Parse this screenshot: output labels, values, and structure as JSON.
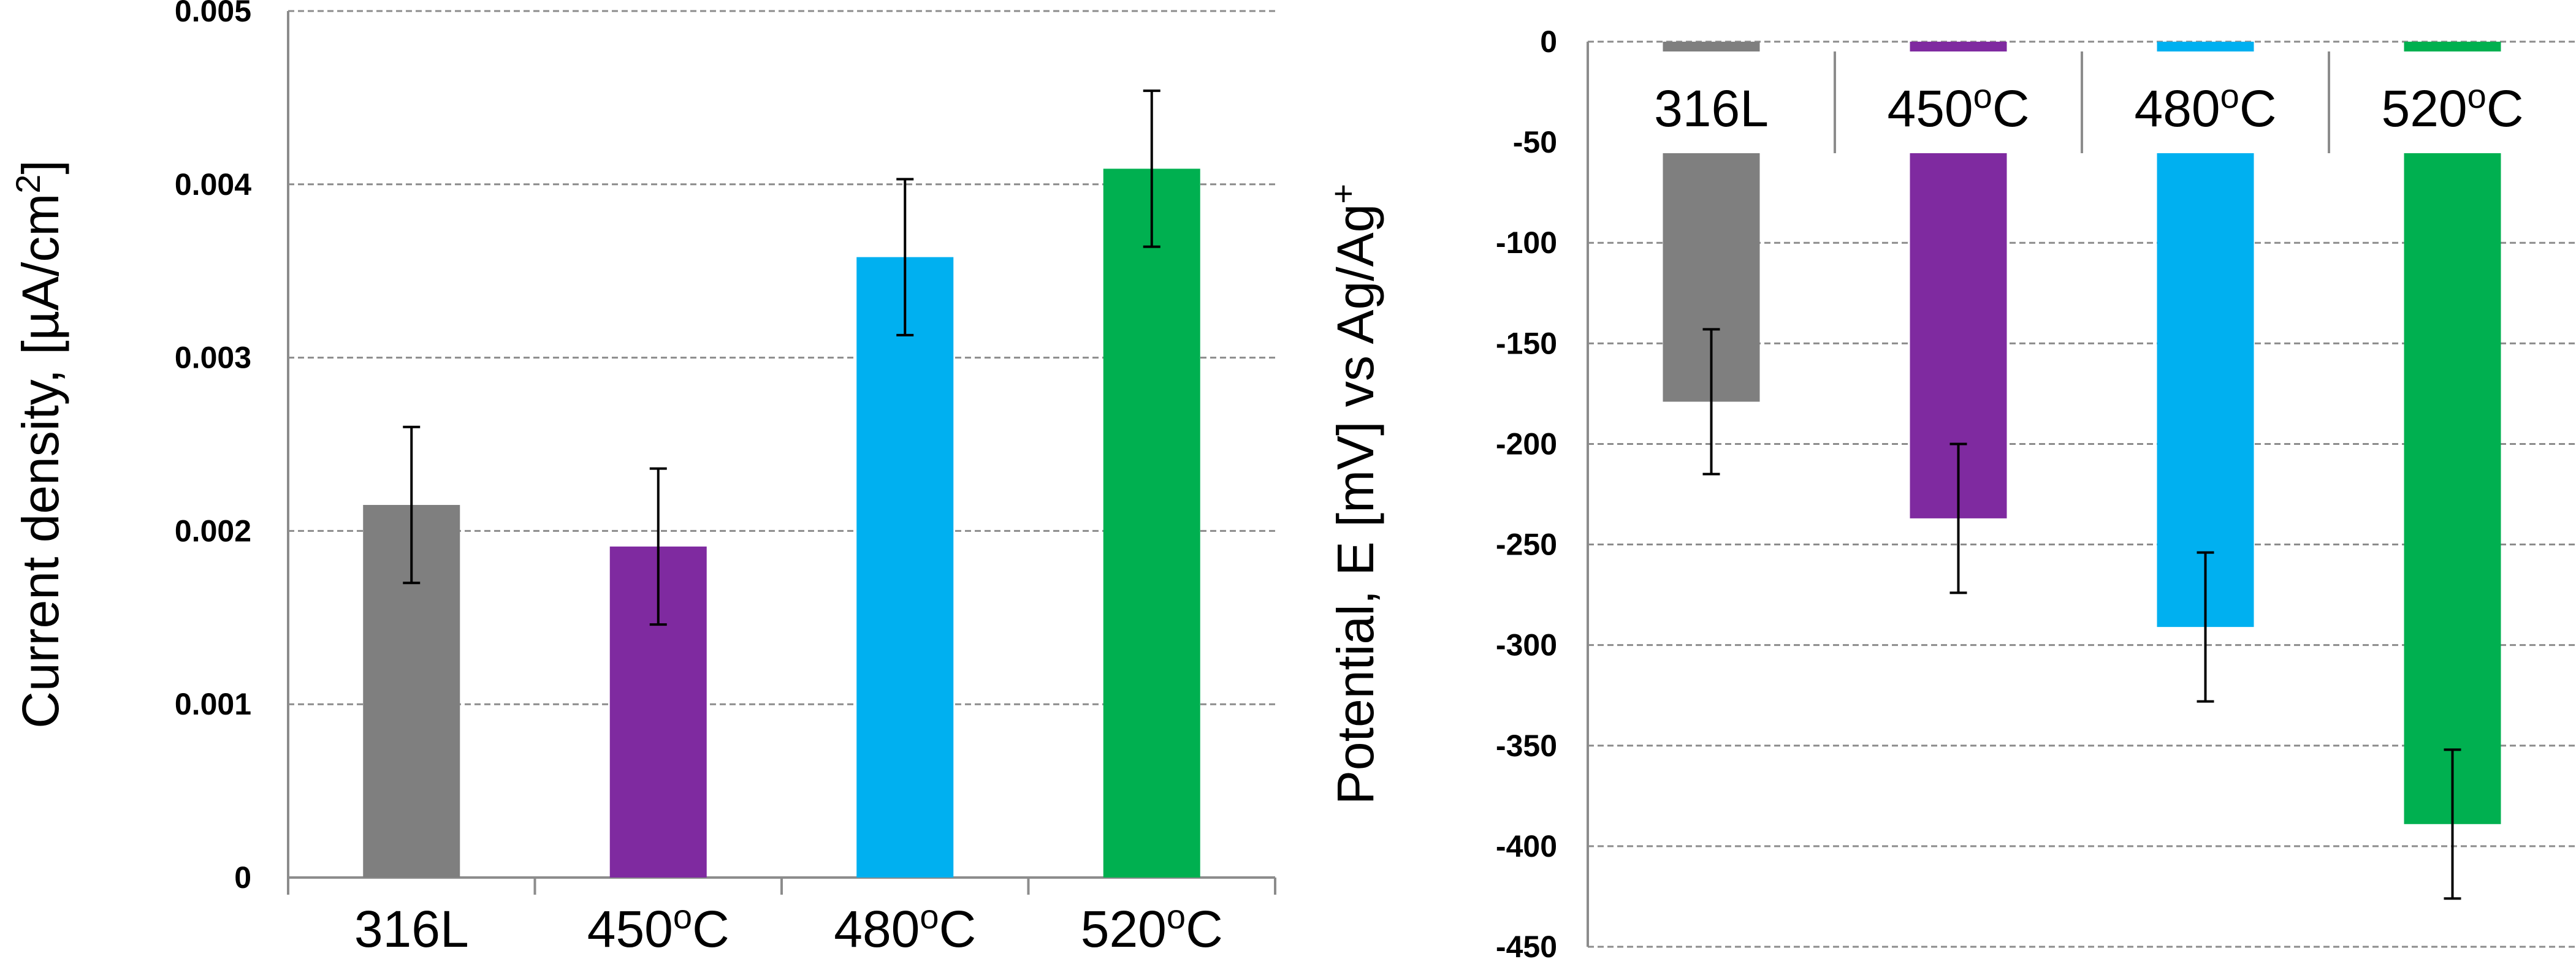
{
  "chart_data": [
    {
      "type": "bar",
      "title": "",
      "xlabel": "",
      "ylabel": "Current density, [µA/cm",
      "ylabel_sup": "2",
      "ylabel_tail": "]",
      "ylim": [
        0,
        0.005
      ],
      "yticks": [
        0,
        0.001,
        0.002,
        0.003,
        0.004,
        0.005
      ],
      "ytick_labels": [
        "0",
        "0.001",
        "0.002",
        "0.003",
        "0.004",
        "0.005"
      ],
      "grid": true,
      "categories": [
        {
          "base": "316L",
          "sup": "",
          "tail": ""
        },
        {
          "base": "450",
          "sup": "o",
          "tail": "C"
        },
        {
          "base": "480",
          "sup": "o",
          "tail": "C"
        },
        {
          "base": "520",
          "sup": "o",
          "tail": "C"
        }
      ],
      "values": [
        0.00215,
        0.00191,
        0.00358,
        0.00409
      ],
      "errors": [
        0.00045,
        0.00045,
        0.00045,
        0.00045
      ],
      "colors": [
        "#7f7f7f",
        "#7f2aa0",
        "#00b0f0",
        "#00b050"
      ]
    },
    {
      "type": "bar",
      "title": "",
      "xlabel": "",
      "ylabel": "Potential, E [mV] vs Ag/Ag",
      "ylabel_sup": "+",
      "ylabel_tail": "",
      "ylim": [
        -450,
        0
      ],
      "yticks": [
        0,
        -50,
        -100,
        -150,
        -200,
        -250,
        -300,
        -350,
        -400,
        -450
      ],
      "ytick_labels": [
        "0",
        "-50",
        "-100",
        "-150",
        "-200",
        "-250",
        "-300",
        "-350",
        "-400",
        "-450"
      ],
      "grid": true,
      "categories": [
        {
          "base": "316L",
          "sup": "",
          "tail": ""
        },
        {
          "base": "450",
          "sup": "o",
          "tail": "C"
        },
        {
          "base": "480",
          "sup": "o",
          "tail": "C"
        },
        {
          "base": "520",
          "sup": "o",
          "tail": "C"
        }
      ],
      "values": [
        -179,
        -237,
        -291,
        -389
      ],
      "errors": [
        36,
        37,
        37,
        37
      ],
      "colors": [
        "#7f7f7f",
        "#7f2aa0",
        "#00b0f0",
        "#00b050"
      ]
    }
  ]
}
